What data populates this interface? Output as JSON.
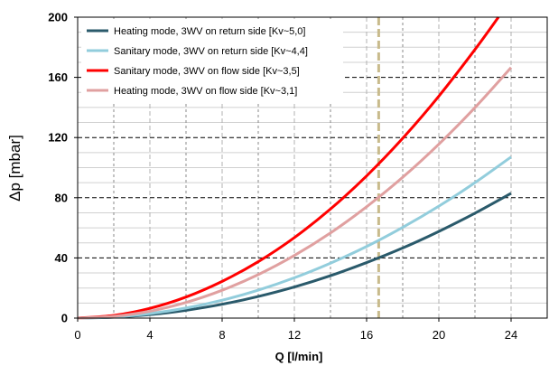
{
  "chart_data": {
    "type": "line",
    "xlabel": "Q [l/min]",
    "ylabel": "Δp [mbar]",
    "xlim": [
      0,
      26
    ],
    "ylim": [
      0,
      200
    ],
    "x_ticks": [
      "0",
      "4",
      "8",
      "12",
      "16",
      "20",
      "24"
    ],
    "y_ticks": [
      "0",
      "40",
      "80",
      "120",
      "160",
      "200"
    ],
    "legend_position": "top-left",
    "grid": true,
    "reference_line_x": 16.67,
    "reference_line_color": "#c8bb8c",
    "series": [
      {
        "name": "Heating mode, 3WV on return side [Kv~5,0]",
        "color": "#2a5a6b",
        "x": [
          0,
          2,
          4,
          6,
          8,
          10,
          12,
          14,
          16,
          18,
          20,
          22,
          24
        ],
        "y": [
          0,
          0.6,
          2.3,
          5.2,
          9.2,
          14.4,
          20.7,
          28.2,
          36.9,
          46.6,
          57.6,
          69.7,
          82.9
        ]
      },
      {
        "name": "Sanitary mode, 3WV on return side [Kv~4,4]",
        "color": "#92cddc",
        "x": [
          0,
          2,
          4,
          6,
          8,
          10,
          12,
          14,
          16,
          18,
          20,
          22,
          24
        ],
        "y": [
          0,
          0.7,
          3,
          6.7,
          11.9,
          18.6,
          26.8,
          36.5,
          47.6,
          60.3,
          74.4,
          90,
          107.1
        ]
      },
      {
        "name": "Sanitary mode, 3WV on flow side [Kv~3,5]",
        "color": "#ff0000",
        "x": [
          0,
          2,
          4,
          6,
          8,
          10,
          12,
          14,
          16,
          18,
          20,
          22,
          23.3
        ],
        "y": [
          0,
          1.8,
          6.5,
          14,
          24.4,
          37.5,
          53.5,
          72.5,
          94.5,
          119.5,
          147.5,
          178.5,
          200
        ]
      },
      {
        "name": "Heating mode, 3WV on flow side [Kv~3,1]",
        "color": "#e0a0a0",
        "x": [
          0,
          2,
          4,
          6,
          8,
          10,
          12,
          14,
          16,
          18,
          20,
          22,
          24
        ],
        "y": [
          0,
          1.2,
          4.6,
          10.4,
          18.5,
          28.9,
          41.6,
          56.6,
          74,
          93.6,
          115.6,
          139.9,
          166.5
        ]
      }
    ]
  }
}
